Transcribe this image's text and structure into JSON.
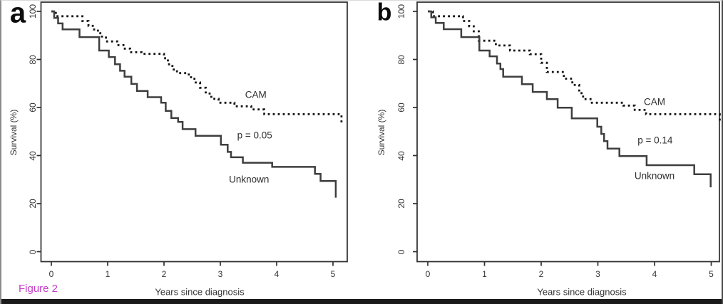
{
  "figure": {
    "caption": "Figure 2"
  },
  "colors": {
    "caption": "#c23bc7",
    "axis": "#2e2e2e",
    "curve_solid": "#3e3e3e",
    "curve_dashed": "#141414",
    "text": "#333333"
  },
  "chart_data": [
    {
      "type": "line",
      "subtype": "kaplan-meier-step",
      "panel_label": "a",
      "xlabel": "Years since diagnosis",
      "ylabel": "Survival (%)",
      "xlim": [
        0,
        5.25
      ],
      "ylim": [
        0,
        100
      ],
      "xticks": [
        0,
        1,
        2,
        3,
        4,
        5
      ],
      "yticks": [
        0,
        20,
        40,
        60,
        80,
        100
      ],
      "grid": false,
      "annotations": [
        {
          "text": "CAM",
          "x": 3.63,
          "y": 65.3
        },
        {
          "text": "p = 0.05",
          "x": 3.61,
          "y": 48.4
        },
        {
          "text": "Unknown",
          "x": 3.51,
          "y": 30.1
        }
      ],
      "series": [
        {
          "name": "CAM",
          "style": "dashed",
          "points": [
            [
              0,
              100
            ],
            [
              0.08,
              98
            ],
            [
              0.55,
              96
            ],
            [
              0.66,
              94
            ],
            [
              0.76,
              92
            ],
            [
              0.87,
              89.5
            ],
            [
              0.97,
              87.5
            ],
            [
              1.17,
              86
            ],
            [
              1.28,
              84.5
            ],
            [
              1.4,
              83
            ],
            [
              1.6,
              82.3
            ],
            [
              2.0,
              80.5
            ],
            [
              2.07,
              78
            ],
            [
              2.15,
              75.8
            ],
            [
              2.23,
              74.3
            ],
            [
              2.44,
              72.6
            ],
            [
              2.54,
              70.4
            ],
            [
              2.64,
              68.2
            ],
            [
              2.74,
              65.8
            ],
            [
              2.84,
              63.6
            ],
            [
              2.97,
              62
            ],
            [
              3.25,
              60.5
            ],
            [
              3.55,
              59.2
            ],
            [
              3.78,
              57.2
            ],
            [
              5.15,
              53.5
            ]
          ]
        },
        {
          "name": "Unknown",
          "style": "solid",
          "points": [
            [
              0,
              100
            ],
            [
              0.05,
              97.3
            ],
            [
              0.12,
              95
            ],
            [
              0.2,
              92.5
            ],
            [
              0.5,
              89.3
            ],
            [
              0.85,
              83.7
            ],
            [
              1.02,
              81
            ],
            [
              1.13,
              78
            ],
            [
              1.22,
              75.3
            ],
            [
              1.3,
              72.8
            ],
            [
              1.42,
              69.8
            ],
            [
              1.52,
              66.9
            ],
            [
              1.71,
              64.3
            ],
            [
              1.95,
              62
            ],
            [
              2.03,
              58.6
            ],
            [
              2.13,
              55.6
            ],
            [
              2.25,
              54
            ],
            [
              2.33,
              51
            ],
            [
              2.56,
              48.2
            ],
            [
              3.01,
              44.5
            ],
            [
              3.13,
              41.5
            ],
            [
              3.19,
              39.3
            ],
            [
              3.4,
              37
            ],
            [
              3.92,
              35.3
            ],
            [
              4.68,
              32.4
            ],
            [
              4.78,
              29.4
            ],
            [
              5.05,
              22.5
            ]
          ]
        }
      ]
    },
    {
      "type": "line",
      "subtype": "kaplan-meier-step",
      "panel_label": "b",
      "xlabel": "Years since diagnosis",
      "ylabel": "Survival (%)",
      "xlim": [
        0,
        5.16
      ],
      "ylim": [
        0,
        100
      ],
      "xticks": [
        0,
        1,
        2,
        3,
        4,
        5
      ],
      "yticks": [
        0,
        20,
        40,
        60,
        80,
        100
      ],
      "grid": false,
      "annotations": [
        {
          "text": "CAM",
          "x": 4.0,
          "y": 62.4
        },
        {
          "text": "p = 0.14",
          "x": 4.01,
          "y": 46.4
        },
        {
          "text": "Unknown",
          "x": 4.0,
          "y": 31.6
        }
      ],
      "series": [
        {
          "name": "CAM",
          "style": "dashed",
          "points": [
            [
              0,
              100
            ],
            [
              0.09,
              98
            ],
            [
              0.62,
              96
            ],
            [
              0.73,
              93.8
            ],
            [
              0.81,
              91.7
            ],
            [
              0.9,
              87.8
            ],
            [
              1.2,
              85.8
            ],
            [
              1.45,
              83.7
            ],
            [
              1.8,
              82.2
            ],
            [
              2.0,
              78.6
            ],
            [
              2.1,
              74.8
            ],
            [
              2.4,
              72
            ],
            [
              2.55,
              69.4
            ],
            [
              2.67,
              66
            ],
            [
              2.74,
              63.5
            ],
            [
              2.87,
              62
            ],
            [
              3.45,
              60.8
            ],
            [
              3.65,
              59
            ],
            [
              3.85,
              57.2
            ],
            [
              5.15,
              53.5
            ]
          ]
        },
        {
          "name": "Unknown",
          "style": "solid",
          "points": [
            [
              0,
              100
            ],
            [
              0.06,
              97.5
            ],
            [
              0.14,
              95.2
            ],
            [
              0.28,
              92.6
            ],
            [
              0.59,
              89.3
            ],
            [
              0.91,
              83.7
            ],
            [
              1.09,
              81.3
            ],
            [
              1.22,
              78.3
            ],
            [
              1.28,
              76
            ],
            [
              1.33,
              72.8
            ],
            [
              1.66,
              69.7
            ],
            [
              1.85,
              66.5
            ],
            [
              2.1,
              63.5
            ],
            [
              2.29,
              59.9
            ],
            [
              2.54,
              55.5
            ],
            [
              2.99,
              52
            ],
            [
              3.06,
              49
            ],
            [
              3.11,
              46
            ],
            [
              3.17,
              42.9
            ],
            [
              3.38,
              39.8
            ],
            [
              3.86,
              36
            ],
            [
              4.7,
              32.2
            ],
            [
              4.99,
              26.8
            ]
          ]
        }
      ]
    }
  ]
}
